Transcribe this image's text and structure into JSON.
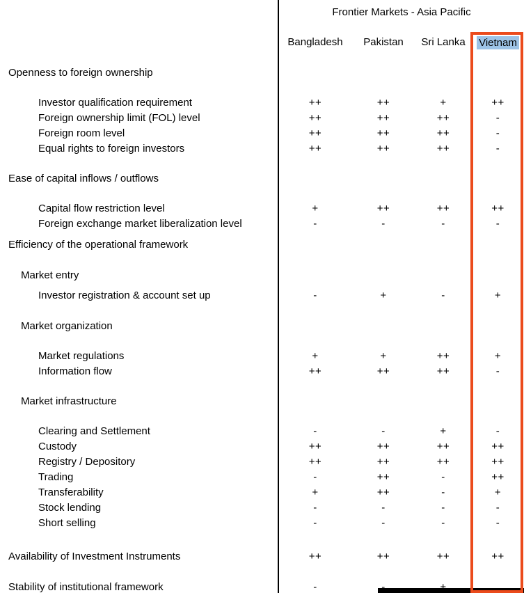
{
  "table": {
    "group_title": "Frontier Markets - Asia Pacific",
    "columns": [
      "Bangladesh",
      "Pakistan",
      "Sri Lanka",
      "Vietnam"
    ],
    "highlighted_column": "Vietnam",
    "colors": {
      "highlight_border": "#eb4b1c",
      "selection_bg": "#9dc3e6",
      "divider": "#000000"
    },
    "rows": [
      {
        "label": "Openness to foreign ownership",
        "indent": 0,
        "space_before": 0,
        "values": [
          "",
          "",
          "",
          ""
        ]
      },
      {
        "label": "Investor qualification requirement",
        "indent": 2,
        "space_before": 21,
        "values": [
          "++",
          "++",
          "+",
          "++"
        ]
      },
      {
        "label": "Foreign ownership limit (FOL) level",
        "indent": 2,
        "space_before": 0,
        "values": [
          "++",
          "++",
          "++",
          "-"
        ]
      },
      {
        "label": "Foreign room level",
        "indent": 2,
        "space_before": 0,
        "values": [
          "++",
          "++",
          "++",
          "-"
        ]
      },
      {
        "label": "Equal rights to foreign investors",
        "indent": 2,
        "space_before": 0,
        "values": [
          "++",
          "++",
          "++",
          "-"
        ]
      },
      {
        "label": "Ease of capital inflows / outflows",
        "indent": 0,
        "space_before": 21,
        "values": [
          "",
          "",
          "",
          ""
        ]
      },
      {
        "label": "Capital flow restriction level",
        "indent": 2,
        "space_before": 21,
        "values": [
          "+",
          "++",
          "++",
          "++"
        ]
      },
      {
        "label": "Foreign exchange market liberalization level",
        "indent": 2,
        "space_before": 0,
        "values": [
          "-",
          "-",
          "-",
          "-"
        ]
      },
      {
        "label": "Efficiency of the operational framework",
        "indent": 0,
        "space_before": 8,
        "values": [
          "",
          "",
          "",
          ""
        ]
      },
      {
        "label": "Market entry",
        "indent": 1,
        "space_before": 22,
        "values": [
          "",
          "",
          "",
          ""
        ]
      },
      {
        "label": "Investor registration & account set up",
        "indent": 2,
        "space_before": 7,
        "values": [
          "-",
          "+",
          "-",
          "+"
        ]
      },
      {
        "label": "Market organization",
        "indent": 1,
        "space_before": 22,
        "values": [
          "",
          "",
          "",
          ""
        ]
      },
      {
        "label": "Market regulations",
        "indent": 2,
        "space_before": 21,
        "values": [
          "+",
          "+",
          "++",
          "+"
        ]
      },
      {
        "label": "Information flow",
        "indent": 2,
        "space_before": 0,
        "values": [
          "++",
          "++",
          "++",
          "-"
        ]
      },
      {
        "label": "Market infrastructure",
        "indent": 1,
        "space_before": 21,
        "values": [
          "",
          "",
          "",
          ""
        ]
      },
      {
        "label": "Clearing and Settlement",
        "indent": 2,
        "space_before": 21,
        "values": [
          "-",
          "-",
          "+",
          "-"
        ]
      },
      {
        "label": "Custody",
        "indent": 2,
        "space_before": 0,
        "values": [
          "++",
          "++",
          "++",
          "++"
        ]
      },
      {
        "label": "Registry / Depository",
        "indent": 2,
        "space_before": 0,
        "values": [
          "++",
          "++",
          "++",
          "++"
        ]
      },
      {
        "label": "Trading",
        "indent": 2,
        "space_before": 0,
        "values": [
          "-",
          "++",
          "-",
          "++"
        ]
      },
      {
        "label": "Transferability",
        "indent": 2,
        "space_before": 0,
        "values": [
          "+",
          "++",
          "-",
          "+"
        ]
      },
      {
        "label": "Stock lending",
        "indent": 2,
        "space_before": 0,
        "values": [
          "-",
          "-",
          "-",
          "-"
        ]
      },
      {
        "label": "Short selling",
        "indent": 2,
        "space_before": 0,
        "values": [
          "-",
          "-",
          "-",
          "-"
        ]
      },
      {
        "label": "Availability of Investment Instruments",
        "indent": 0,
        "space_before": 26,
        "values": [
          "++",
          "++",
          "++",
          "++"
        ]
      },
      {
        "label": "Stability of institutional framework",
        "indent": 0,
        "space_before": 22,
        "values": [
          "-",
          "-",
          "+",
          ""
        ]
      }
    ]
  }
}
